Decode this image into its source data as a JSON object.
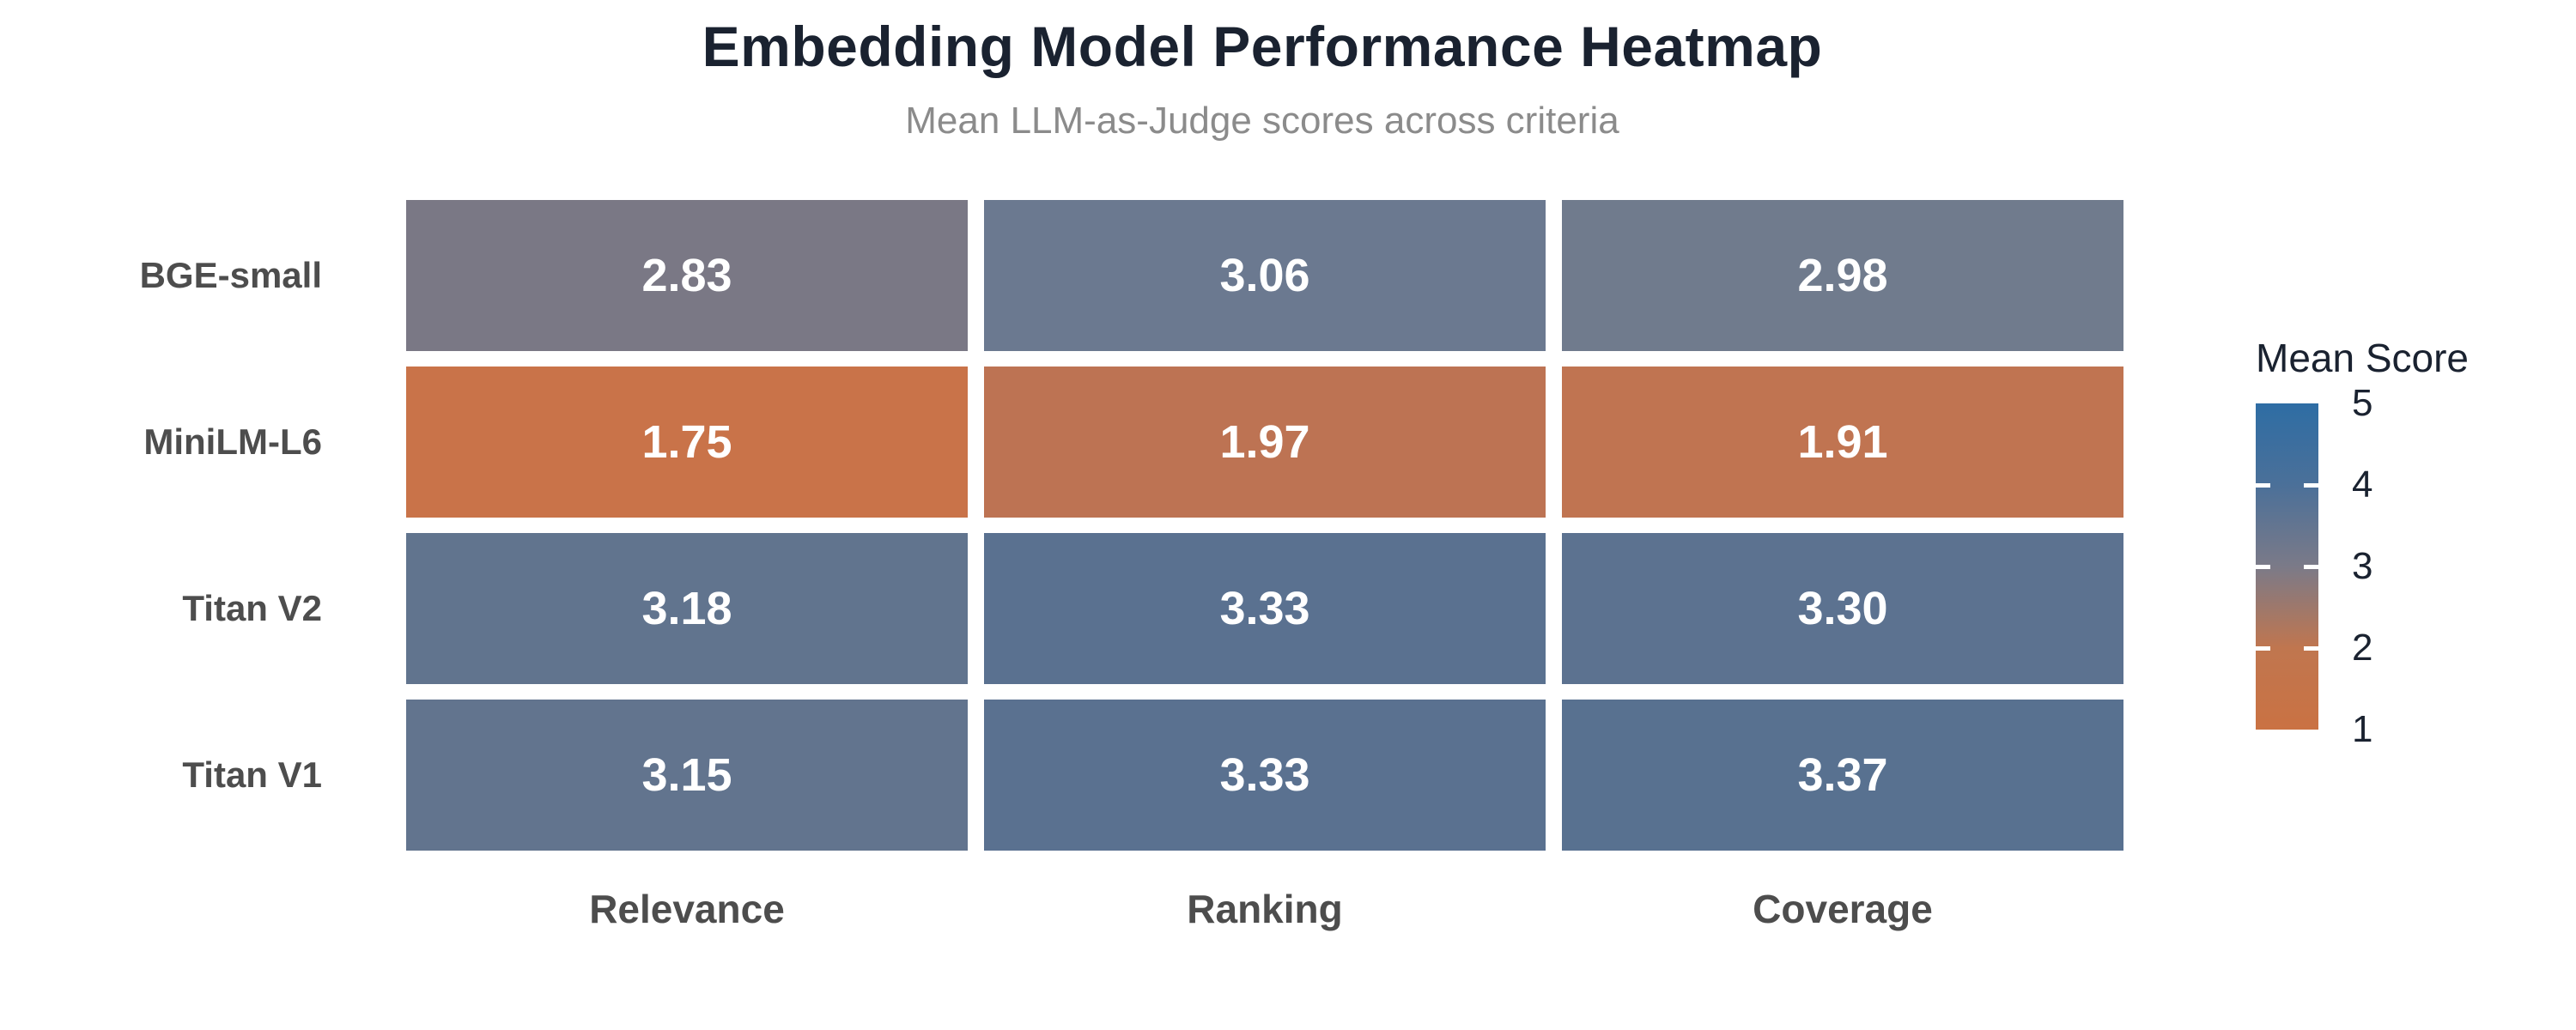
{
  "chart_data": {
    "type": "heatmap",
    "title": "Embedding Model Performance Heatmap",
    "subtitle": "Mean LLM-as-Judge scores across criteria",
    "rows": [
      "BGE-small",
      "MiniLM-L6",
      "Titan V2",
      "Titan V1"
    ],
    "columns": [
      "Relevance",
      "Ranking",
      "Coverage"
    ],
    "values": [
      [
        2.83,
        3.06,
        2.98
      ],
      [
        1.75,
        1.97,
        1.91
      ],
      [
        3.18,
        3.33,
        3.3
      ],
      [
        3.15,
        3.33,
        3.37
      ]
    ],
    "cell_colors": [
      [
        "#7a7885",
        "#6b7990",
        "#707b8d"
      ],
      [
        "#c97349",
        "#bd7353",
        "#c07451"
      ],
      [
        "#61748e",
        "#5a7190",
        "#5c7290"
      ],
      [
        "#62748e",
        "#5a7190",
        "#587190"
      ]
    ],
    "value_format_decimals": 2,
    "legend": {
      "title": "Mean Score",
      "min": 1,
      "max": 5,
      "ticks": [
        5,
        4,
        3,
        2,
        1
      ],
      "gradient_stops": [
        {
          "value": 1,
          "color": "#ca7243"
        },
        {
          "value": 2,
          "color": "#c0764f"
        },
        {
          "value": 3,
          "color": "#7b7a88"
        },
        {
          "value": 4,
          "color": "#4b7099"
        },
        {
          "value": 5,
          "color": "#2e6da4"
        }
      ]
    },
    "layout": {
      "grid_on": false,
      "legend_position": "right",
      "colors": {
        "title": "#1a2230",
        "subtitle": "#8b8b8b",
        "axis_label": "#4d4d4d",
        "cell_text": "#ffffff",
        "legend_text": "#1a2230",
        "background": "#ffffff"
      }
    }
  }
}
